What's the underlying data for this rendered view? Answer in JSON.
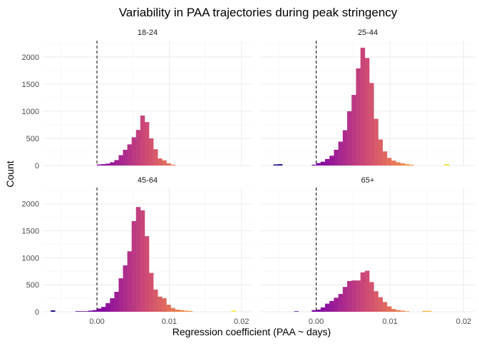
{
  "chart_data": {
    "type": "bar",
    "title": "Variability in PAA trajectories during peak stringency",
    "xlabel": "Regression coefficient (PAA ~ days)",
    "ylabel": "Count",
    "xlim": [
      -0.0075,
      0.0215
    ],
    "ylim": [
      0,
      2300
    ],
    "x_ticks": [
      0.0,
      0.01,
      0.02
    ],
    "x_tick_labels": [
      "0.00",
      "0.01",
      "0.02"
    ],
    "y_ticks": [
      0,
      500,
      1000,
      1500,
      2000
    ],
    "y_tick_labels": [
      "0",
      "500",
      "1000",
      "1500",
      "2000"
    ],
    "reference_line_x": 0,
    "grid": true,
    "legend": "none",
    "color_scale": [
      "#0d0887",
      "#7e03a8",
      "#cc4778",
      "#f89540",
      "#f0f921"
    ],
    "panels": [
      {
        "label": "18-24",
        "bins": [
          {
            "x0": 0.0,
            "x1": 0.0006,
            "count": 20
          },
          {
            "x0": 0.0006,
            "x1": 0.0012,
            "count": 25
          },
          {
            "x0": 0.0012,
            "x1": 0.0018,
            "count": 35
          },
          {
            "x0": 0.0018,
            "x1": 0.0024,
            "count": 60
          },
          {
            "x0": 0.0024,
            "x1": 0.003,
            "count": 100
          },
          {
            "x0": 0.003,
            "x1": 0.0036,
            "count": 190
          },
          {
            "x0": 0.0036,
            "x1": 0.0042,
            "count": 290
          },
          {
            "x0": 0.0042,
            "x1": 0.0048,
            "count": 390
          },
          {
            "x0": 0.0048,
            "x1": 0.0054,
            "count": 520
          },
          {
            "x0": 0.0054,
            "x1": 0.006,
            "count": 655
          },
          {
            "x0": 0.006,
            "x1": 0.0066,
            "count": 920
          },
          {
            "x0": 0.0066,
            "x1": 0.0072,
            "count": 800
          },
          {
            "x0": 0.0072,
            "x1": 0.0078,
            "count": 500
          },
          {
            "x0": 0.0078,
            "x1": 0.0084,
            "count": 300
          },
          {
            "x0": 0.0084,
            "x1": 0.009,
            "count": 130
          },
          {
            "x0": 0.009,
            "x1": 0.0096,
            "count": 95
          },
          {
            "x0": 0.0096,
            "x1": 0.0102,
            "count": 40
          },
          {
            "x0": 0.0102,
            "x1": 0.0108,
            "count": 15
          }
        ]
      },
      {
        "label": "25-44",
        "bins": [
          {
            "x0": -0.0058,
            "x1": -0.0052,
            "count": 20
          },
          {
            "x0": -0.0052,
            "x1": -0.0046,
            "count": 25
          },
          {
            "x0": -0.0006,
            "x1": 0.0,
            "count": 15
          },
          {
            "x0": 0.0,
            "x1": 0.0006,
            "count": 45
          },
          {
            "x0": 0.0006,
            "x1": 0.0012,
            "count": 70
          },
          {
            "x0": 0.0012,
            "x1": 0.0018,
            "count": 120
          },
          {
            "x0": 0.0018,
            "x1": 0.0024,
            "count": 180
          },
          {
            "x0": 0.0024,
            "x1": 0.003,
            "count": 290
          },
          {
            "x0": 0.003,
            "x1": 0.0036,
            "count": 440
          },
          {
            "x0": 0.0036,
            "x1": 0.0042,
            "count": 650
          },
          {
            "x0": 0.0042,
            "x1": 0.0048,
            "count": 1000
          },
          {
            "x0": 0.0048,
            "x1": 0.0054,
            "count": 1300
          },
          {
            "x0": 0.0054,
            "x1": 0.006,
            "count": 1790
          },
          {
            "x0": 0.006,
            "x1": 0.0066,
            "count": 2170
          },
          {
            "x0": 0.0066,
            "x1": 0.0072,
            "count": 1980
          },
          {
            "x0": 0.0072,
            "x1": 0.0078,
            "count": 1520
          },
          {
            "x0": 0.0078,
            "x1": 0.0084,
            "count": 860
          },
          {
            "x0": 0.0084,
            "x1": 0.009,
            "count": 480
          },
          {
            "x0": 0.009,
            "x1": 0.0096,
            "count": 260
          },
          {
            "x0": 0.0096,
            "x1": 0.0102,
            "count": 140
          },
          {
            "x0": 0.0102,
            "x1": 0.0108,
            "count": 90
          },
          {
            "x0": 0.0108,
            "x1": 0.0114,
            "count": 60
          },
          {
            "x0": 0.0114,
            "x1": 0.012,
            "count": 40
          },
          {
            "x0": 0.012,
            "x1": 0.0126,
            "count": 25
          },
          {
            "x0": 0.0126,
            "x1": 0.0132,
            "count": 15
          },
          {
            "x0": 0.0174,
            "x1": 0.018,
            "count": 25
          }
        ]
      },
      {
        "label": "45-64",
        "bins": [
          {
            "x0": -0.0064,
            "x1": -0.0058,
            "count": 25
          },
          {
            "x0": -0.003,
            "x1": -0.0024,
            "count": 10
          },
          {
            "x0": -0.0024,
            "x1": -0.0018,
            "count": 10
          },
          {
            "x0": -0.0018,
            "x1": -0.0012,
            "count": 10
          },
          {
            "x0": -0.0012,
            "x1": -0.0006,
            "count": 20
          },
          {
            "x0": -0.0006,
            "x1": 0.0,
            "count": 30
          },
          {
            "x0": 0.0,
            "x1": 0.0006,
            "count": 60
          },
          {
            "x0": 0.0006,
            "x1": 0.0012,
            "count": 90
          },
          {
            "x0": 0.0012,
            "x1": 0.0018,
            "count": 160
          },
          {
            "x0": 0.0018,
            "x1": 0.0024,
            "count": 250
          },
          {
            "x0": 0.0024,
            "x1": 0.003,
            "count": 370
          },
          {
            "x0": 0.003,
            "x1": 0.0036,
            "count": 620
          },
          {
            "x0": 0.0036,
            "x1": 0.0042,
            "count": 860
          },
          {
            "x0": 0.0042,
            "x1": 0.0048,
            "count": 1120
          },
          {
            "x0": 0.0048,
            "x1": 0.0054,
            "count": 1680
          },
          {
            "x0": 0.0054,
            "x1": 0.006,
            "count": 1940
          },
          {
            "x0": 0.006,
            "x1": 0.0066,
            "count": 1880
          },
          {
            "x0": 0.0066,
            "x1": 0.0072,
            "count": 1400
          },
          {
            "x0": 0.0072,
            "x1": 0.0078,
            "count": 720
          },
          {
            "x0": 0.0078,
            "x1": 0.0084,
            "count": 410
          },
          {
            "x0": 0.0084,
            "x1": 0.009,
            "count": 280
          },
          {
            "x0": 0.009,
            "x1": 0.0096,
            "count": 250
          },
          {
            "x0": 0.0096,
            "x1": 0.0102,
            "count": 130
          },
          {
            "x0": 0.0102,
            "x1": 0.0108,
            "count": 70
          },
          {
            "x0": 0.0108,
            "x1": 0.0114,
            "count": 40
          },
          {
            "x0": 0.0114,
            "x1": 0.012,
            "count": 30
          },
          {
            "x0": 0.012,
            "x1": 0.0126,
            "count": 20
          },
          {
            "x0": 0.0126,
            "x1": 0.0132,
            "count": 15
          },
          {
            "x0": 0.0186,
            "x1": 0.0192,
            "count": 20
          }
        ]
      },
      {
        "label": "65+",
        "bins": [
          {
            "x0": -0.003,
            "x1": -0.0024,
            "count": 10
          },
          {
            "x0": -0.0006,
            "x1": 0.0,
            "count": 30
          },
          {
            "x0": 0.0,
            "x1": 0.0006,
            "count": 40
          },
          {
            "x0": 0.0006,
            "x1": 0.0012,
            "count": 80
          },
          {
            "x0": 0.0012,
            "x1": 0.0018,
            "count": 150
          },
          {
            "x0": 0.0018,
            "x1": 0.0024,
            "count": 200
          },
          {
            "x0": 0.0024,
            "x1": 0.003,
            "count": 260
          },
          {
            "x0": 0.003,
            "x1": 0.0036,
            "count": 330
          },
          {
            "x0": 0.0036,
            "x1": 0.0042,
            "count": 460
          },
          {
            "x0": 0.0042,
            "x1": 0.0048,
            "count": 570
          },
          {
            "x0": 0.0048,
            "x1": 0.0054,
            "count": 580
          },
          {
            "x0": 0.0054,
            "x1": 0.006,
            "count": 580
          },
          {
            "x0": 0.006,
            "x1": 0.0066,
            "count": 730
          },
          {
            "x0": 0.0066,
            "x1": 0.0072,
            "count": 760
          },
          {
            "x0": 0.0072,
            "x1": 0.0078,
            "count": 550
          },
          {
            "x0": 0.0078,
            "x1": 0.0084,
            "count": 380
          },
          {
            "x0": 0.0084,
            "x1": 0.009,
            "count": 270
          },
          {
            "x0": 0.009,
            "x1": 0.0096,
            "count": 180
          },
          {
            "x0": 0.0096,
            "x1": 0.0102,
            "count": 100
          },
          {
            "x0": 0.0102,
            "x1": 0.0108,
            "count": 50
          },
          {
            "x0": 0.0108,
            "x1": 0.0114,
            "count": 30
          },
          {
            "x0": 0.0114,
            "x1": 0.012,
            "count": 20
          },
          {
            "x0": 0.012,
            "x1": 0.0126,
            "count": 10
          },
          {
            "x0": 0.0144,
            "x1": 0.015,
            "count": 15
          },
          {
            "x0": 0.015,
            "x1": 0.0156,
            "count": 15
          }
        ]
      }
    ]
  }
}
